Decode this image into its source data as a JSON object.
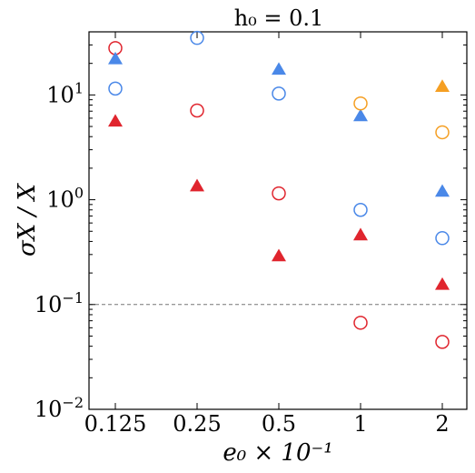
{
  "chart_data": {
    "type": "scatter",
    "title": "h₀ = 0.1",
    "xlabel": "e₀ × 10⁻¹",
    "ylabel": "σX / X",
    "y_scale": "log",
    "ylim": [
      0.01,
      40
    ],
    "x_categories": [
      "0.125",
      "0.25",
      "0.5",
      "1",
      "2"
    ],
    "y_tick_labels": [
      {
        "value": 0.01,
        "base": "10",
        "exp": "−2"
      },
      {
        "value": 0.1,
        "base": "10",
        "exp": "−1"
      },
      {
        "value": 1,
        "base": "10",
        "exp": "0"
      },
      {
        "value": 10,
        "base": "10",
        "exp": "1"
      }
    ],
    "reference_line": {
      "y": 0.1,
      "style": "dashed",
      "color": "#777777"
    },
    "grid": false,
    "series": [
      {
        "color": "#e0252e",
        "marker": "circle-open",
        "points": [
          {
            "x": "0.125",
            "y": 28
          },
          {
            "x": "0.25",
            "y": 7.1
          },
          {
            "x": "0.5",
            "y": 1.15
          },
          {
            "x": "1",
            "y": 0.067
          },
          {
            "x": "2",
            "y": 0.044
          }
        ]
      },
      {
        "color": "#e0252e",
        "marker": "triangle-filled",
        "points": [
          {
            "x": "0.125",
            "y": 5.6
          },
          {
            "x": "0.25",
            "y": 1.35
          },
          {
            "x": "0.5",
            "y": 0.29
          },
          {
            "x": "1",
            "y": 0.46
          },
          {
            "x": "2",
            "y": 0.155
          }
        ]
      },
      {
        "color": "#4a88e8",
        "marker": "circle-open",
        "points": [
          {
            "x": "0.125",
            "y": 11.5
          },
          {
            "x": "0.25",
            "y": 35
          },
          {
            "x": "0.5",
            "y": 10.3
          },
          {
            "x": "1",
            "y": 0.8
          },
          {
            "x": "2",
            "y": 0.43
          }
        ]
      },
      {
        "color": "#4a88e8",
        "marker": "triangle-filled",
        "points": [
          {
            "x": "0.125",
            "y": 22
          },
          {
            "x": "0.5",
            "y": 17.5
          },
          {
            "x": "1",
            "y": 6.3
          },
          {
            "x": "2",
            "y": 1.2
          }
        ]
      },
      {
        "color": "#f59f23",
        "marker": "circle-open",
        "points": [
          {
            "x": "1",
            "y": 8.3
          },
          {
            "x": "2",
            "y": 4.4
          }
        ]
      },
      {
        "color": "#f59f23",
        "marker": "triangle-filled",
        "points": [
          {
            "x": "2",
            "y": 12
          }
        ]
      }
    ]
  }
}
